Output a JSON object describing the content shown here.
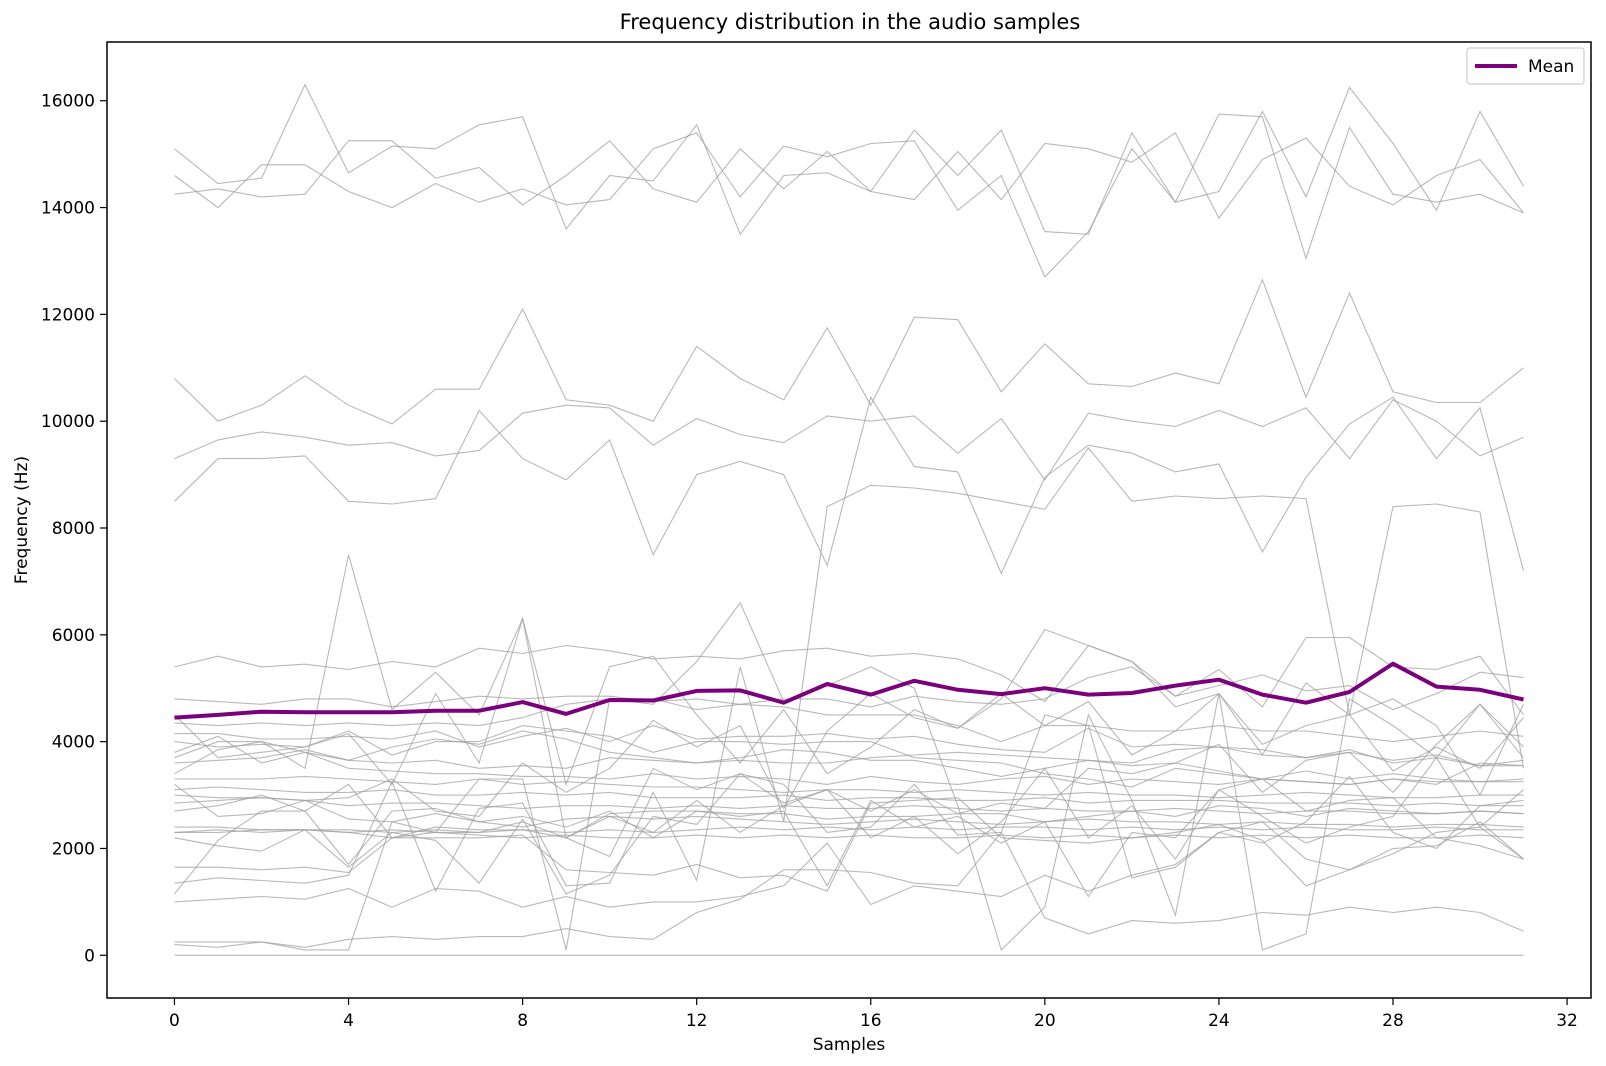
{
  "chart_data": {
    "type": "line",
    "title": "Frequency distribution in the audio samples",
    "xlabel": "Samples",
    "ylabel": "Frequency (Hz)",
    "xlim": [
      -1.55,
      32.55
    ],
    "ylim": [
      -800,
      17100
    ],
    "xticks": [
      0,
      4,
      8,
      12,
      16,
      20,
      24,
      28,
      32
    ],
    "yticks": [
      0,
      2000,
      4000,
      6000,
      8000,
      10000,
      12000,
      14000,
      16000
    ],
    "grid": false,
    "legend": {
      "position": "top-right",
      "entries": [
        "Mean"
      ]
    },
    "colors": {
      "mean": "#7b007b",
      "samples": "#a0a0a0"
    },
    "x": [
      0,
      1,
      2,
      3,
      4,
      5,
      6,
      7,
      8,
      9,
      10,
      11,
      12,
      13,
      14,
      15,
      16,
      17,
      18,
      19,
      20,
      21,
      22,
      23,
      24,
      25,
      26,
      27,
      28,
      29,
      30,
      31
    ],
    "series": [
      {
        "values": [
          15100,
          14450,
          14550,
          16300,
          14650,
          15150,
          15100,
          15550,
          15700,
          13600,
          14600,
          14500,
          15550,
          13500,
          14600,
          14650,
          14300,
          15450,
          14600,
          15450,
          13550,
          13500,
          15400,
          14100,
          14300,
          15800,
          14200,
          16250,
          15200,
          13950,
          15800,
          14400
        ]
      },
      {
        "values": [
          14250,
          14350,
          14200,
          14250,
          15250,
          15250,
          14550,
          14750,
          14050,
          14600,
          15250,
          14350,
          14100,
          15100,
          14350,
          15050,
          14300,
          14150,
          15050,
          14150,
          15200,
          15100,
          14850,
          15400,
          13800,
          14900,
          15300,
          14400,
          14050,
          14600,
          14900,
          13900
        ]
      },
      {
        "values": [
          14600,
          14000,
          14800,
          14800,
          14300,
          14000,
          14450,
          14100,
          14350,
          14050,
          14150,
          15100,
          15400,
          14200,
          15150,
          14950,
          15200,
          15250,
          13950,
          14600,
          12700,
          13550,
          15100,
          14100,
          15750,
          15700,
          13050,
          15500,
          14250,
          14100,
          14250,
          13900
        ]
      },
      {
        "values": [
          10800,
          10000,
          10300,
          10850,
          10300,
          9950,
          10600,
          10600,
          12100,
          10400,
          10300,
          10000,
          11400,
          10800,
          10400,
          11750,
          10300,
          11950,
          11900,
          10550,
          11450,
          10700,
          10650,
          10900,
          10700,
          12650,
          10450,
          12400,
          10550,
          10350,
          10350,
          11000
        ]
      },
      {
        "values": [
          9300,
          9650,
          9800,
          9700,
          9550,
          9600,
          9350,
          9450,
          10150,
          10300,
          10250,
          9550,
          10050,
          9750,
          9600,
          10100,
          10000,
          10100,
          9400,
          10050,
          8900,
          10150,
          10000,
          9900,
          10200,
          9900,
          10250,
          9300,
          10400,
          10000,
          9350,
          9700
        ]
      },
      {
        "values": [
          8500,
          9300,
          9300,
          9350,
          8500,
          8450,
          8550,
          10200,
          9300,
          8900,
          9650,
          7500,
          9000,
          9250,
          9000,
          7300,
          10450,
          9150,
          9050,
          7150,
          8950,
          9550,
          9400,
          9050,
          9200,
          7550,
          8950,
          9950,
          10450,
          9300,
          10250,
          7200
        ]
      },
      {
        "values": [
          5400,
          5600,
          5400,
          5450,
          5350,
          5500,
          5400,
          5750,
          5650,
          5800,
          5700,
          5550,
          5600,
          5550,
          5700,
          5750,
          5600,
          5650,
          5550,
          5250,
          4750,
          5800,
          5500,
          4850,
          5350,
          4650,
          5950,
          5950,
          5400,
          5350,
          5600,
          4500
        ]
      },
      {
        "values": [
          4800,
          4750,
          4700,
          4800,
          4800,
          4650,
          4750,
          4850,
          4800,
          4850,
          4850,
          4750,
          4800,
          4700,
          4800,
          4800,
          4650,
          4850,
          4750,
          4700,
          4800,
          5200,
          5400,
          4850,
          5050,
          5250,
          4950,
          5050,
          4600,
          4900,
          5300,
          5200
        ]
      },
      {
        "values": [
          4350,
          4300,
          4350,
          4300,
          4350,
          4300,
          4350,
          4300,
          4450,
          4700,
          4800,
          4800,
          4600,
          4700,
          4650,
          4500,
          4500,
          4500,
          4300,
          4000,
          4300,
          4300,
          4200,
          4200,
          4300,
          4200,
          4200,
          4100,
          4000,
          4100,
          4200,
          4100
        ]
      },
      {
        "values": [
          4150,
          4150,
          4050,
          4050,
          4100,
          4050,
          4200,
          3900,
          4100,
          4250,
          4000,
          4300,
          4050,
          4100,
          4100,
          4150,
          4050,
          4100,
          3950,
          3850,
          3800,
          4250,
          3900,
          3950,
          3900,
          3850,
          3700,
          3800,
          3650,
          3750,
          3550,
          3550
        ]
      },
      {
        "values": [
          4000,
          3900,
          3950,
          3900,
          4200,
          3750,
          4000,
          4000,
          4300,
          4200,
          4100,
          3800,
          4000,
          4000,
          3950,
          4000,
          4000,
          3700,
          3650,
          3600,
          3400,
          3300,
          3150,
          3500,
          3400,
          3300,
          3250,
          3200,
          3300,
          3200,
          3600,
          3550
        ]
      },
      {
        "values": [
          3800,
          4100,
          3600,
          3800,
          3650,
          3900,
          4050,
          3950,
          4200,
          4050,
          3800,
          3700,
          3600,
          3700,
          3850,
          3800,
          3650,
          3650,
          3500,
          3350,
          3500,
          3650,
          3550,
          3600,
          3450,
          3300,
          3450,
          3300,
          3400,
          3300,
          3250,
          3250
        ]
      },
      {
        "values": [
          3600,
          3650,
          3700,
          3850,
          3650,
          3600,
          3650,
          3500,
          3550,
          3500,
          3700,
          3650,
          3600,
          3650,
          3600,
          3600,
          3700,
          3750,
          3800,
          3750,
          3700,
          3650,
          3600,
          3850,
          3900,
          3750,
          3700,
          3850,
          3600,
          3700,
          3550,
          3650
        ]
      },
      {
        "values": [
          3400,
          3850,
          4000,
          3800,
          3500,
          3450,
          3400,
          3400,
          3350,
          3350,
          3300,
          3400,
          3300,
          3350,
          3300,
          3200,
          3350,
          3250,
          3200,
          3300,
          3350,
          3200,
          3300,
          3250,
          3200,
          3300,
          3250,
          3200,
          3300,
          3250,
          3250,
          3300
        ]
      },
      {
        "values": [
          3300,
          3300,
          3300,
          3350,
          3300,
          3250,
          3200,
          3300,
          3200,
          3250,
          3200,
          3150,
          3150,
          3100,
          3050,
          3100,
          3100,
          3050,
          3100,
          3050,
          3000,
          3050,
          3000,
          3000,
          2950,
          3000,
          3050,
          3000,
          2950,
          2950,
          3000,
          3000
        ]
      },
      {
        "values": [
          3100,
          3150,
          3100,
          3050,
          3050,
          3100,
          3000,
          3000,
          3050,
          3000,
          3050,
          2950,
          2950,
          2950,
          3000,
          2900,
          2950,
          2950,
          2900,
          2900,
          2950,
          2850,
          2900,
          2900,
          2900,
          2850,
          2850,
          2850,
          2800,
          2850,
          2800,
          2800
        ]
      },
      {
        "values": [
          3200,
          2600,
          2650,
          2900,
          2550,
          2500,
          2650,
          2500,
          2400,
          2550,
          2600,
          2550,
          2600,
          2550,
          2500,
          2450,
          2500,
          2550,
          2500,
          2450,
          2500,
          2550,
          2500,
          2500,
          2450,
          2500,
          2450,
          2450,
          2400,
          2450,
          2450,
          2400
        ]
      },
      {
        "values": [
          2850,
          2900,
          2950,
          2900,
          2800,
          2850,
          2850,
          2800,
          2750,
          2800,
          2800,
          2750,
          2800,
          2750,
          2800,
          2750,
          2750,
          2800,
          2750,
          2700,
          2750,
          2700,
          2700,
          2750,
          2700,
          2650,
          2700,
          2700,
          2650,
          2650,
          2700,
          2650
        ]
      },
      {
        "values": [
          2400,
          2400,
          2350,
          2350,
          2300,
          2350,
          2300,
          2250,
          2200,
          2250,
          2200,
          2200,
          2250,
          2200,
          2250,
          2200,
          2250,
          2200,
          2200,
          2250,
          2200,
          2250,
          2200,
          2250,
          2200,
          2250,
          2200,
          2250,
          2200,
          2200,
          2250,
          2200
        ]
      },
      {
        "values": [
          2300,
          2350,
          2300,
          2350,
          2350,
          2300,
          2350,
          2300,
          2350,
          2300,
          2350,
          2300,
          2350,
          2400,
          2350,
          2400,
          2350,
          2400,
          2350,
          2400,
          2400,
          2350,
          2400,
          2350,
          2400,
          2350,
          2400,
          2350,
          2350,
          2400,
          2350,
          2350
        ]
      },
      {
        "values": [
          1650,
          1650,
          1600,
          1650,
          1550,
          2200,
          2200,
          2200,
          2250,
          1600,
          1550,
          1500,
          1700,
          1450,
          1500,
          1200,
          2850,
          2900,
          2950,
          2200,
          2150,
          2100,
          2200,
          2300,
          2450,
          2150,
          1300,
          1600,
          2000,
          2050,
          2500,
          1800
        ]
      },
      {
        "values": [
          1150,
          2150,
          2700,
          2700,
          1700,
          2700,
          2750,
          2500,
          2600,
          2400,
          2700,
          2200,
          2700,
          2600,
          2700,
          1300,
          2900,
          2400,
          2600,
          2100,
          2500,
          1100,
          2300,
          2200,
          3100,
          3300,
          2700,
          2900,
          2950,
          2200,
          2050,
          1800
        ]
      },
      {
        "values": [
          1000,
          1050,
          1100,
          1050,
          1250,
          900,
          1250,
          1200,
          900,
          1100,
          900,
          1000,
          1000,
          1100,
          1300,
          2100,
          950,
          1300,
          1200,
          1100,
          1500,
          1200,
          1500,
          1700,
          2300,
          2500,
          1800,
          1600,
          1900,
          2300,
          2400,
          1800
        ]
      },
      {
        "values": [
          250,
          250,
          250,
          150,
          300,
          350,
          300,
          350,
          350,
          500,
          350,
          300,
          800,
          1050,
          1600,
          1600,
          1550,
          1350,
          1300,
          2300,
          700,
          400,
          650,
          600,
          650,
          800,
          750,
          900,
          800,
          900,
          800,
          450
        ]
      },
      {
        "values": [
          200,
          150,
          250,
          100,
          100,
          2500,
          2300,
          3300,
          3300,
          100,
          4800,
          4700,
          5500,
          6600,
          4750,
          5050,
          5400,
          5000,
          2800,
          100,
          900,
          4500,
          2900,
          750,
          4900,
          100,
          400,
          4800,
          4300,
          3700,
          4700,
          3900
        ]
      },
      {
        "values": [
          3000,
          2950,
          2950,
          2900,
          2950,
          3300,
          2700,
          2600,
          3600,
          3050,
          3500,
          4400,
          3900,
          4300,
          2750,
          4200,
          4900,
          4450,
          4250,
          4800,
          6100,
          5800,
          5500,
          4650,
          4900,
          3750,
          5100,
          4500,
          4800,
          4300,
          3000,
          4700
        ]
      },
      {
        "values": [
          4500,
          3700,
          3800,
          3900,
          4150,
          3200,
          4900,
          3600,
          6300,
          3200,
          5400,
          5600,
          4500,
          3600,
          4600,
          3400,
          3900,
          4600,
          4250,
          4900,
          4300,
          4750,
          3750,
          4200,
          4900,
          3950,
          4300,
          4500,
          3450,
          3900,
          3500,
          4450
        ]
      },
      {
        "values": [
          3700,
          4000,
          4000,
          3500,
          7500,
          4600,
          5300,
          4500,
          6300,
          2200,
          1850,
          3500,
          3100,
          3400,
          3200,
          2300,
          2400,
          3200,
          2250,
          2300,
          4500,
          4300,
          1450,
          1650,
          2300,
          2100,
          2500,
          3350,
          2300,
          2000,
          2800,
          2900
        ]
      },
      {
        "values": [
          2700,
          2800,
          3000,
          2700,
          3200,
          2200,
          2300,
          2300,
          2500,
          2200,
          2600,
          2300,
          2900,
          2300,
          2800,
          3100,
          2200,
          2600,
          1900,
          2500,
          3500,
          2200,
          2800,
          1800,
          3100,
          2600,
          2100,
          2400,
          2600,
          3700,
          2400,
          3100
        ]
      },
      {
        "values": [
          0,
          0,
          0,
          0,
          0,
          0,
          0,
          0,
          0,
          0,
          0,
          0,
          0,
          0,
          0,
          0,
          0,
          0,
          0,
          0,
          0,
          0,
          0,
          0,
          0,
          0,
          0,
          0,
          0,
          0,
          0,
          0
        ]
      },
      {
        "values": [
          2300,
          2300,
          2350,
          2350,
          2300,
          2200,
          2400,
          2350,
          2350,
          2200,
          2650,
          2700,
          2700,
          2650,
          2650,
          2550,
          2600,
          2600,
          2650,
          2650,
          2500,
          2600,
          2700,
          2600,
          2800,
          2750,
          2600,
          2750,
          2700,
          2650,
          2700,
          2650
        ]
      },
      {
        "values": [
          2200,
          2050,
          1950,
          2350,
          1650,
          2300,
          2150,
          1350,
          2550,
          1150,
          1500,
          2600,
          2450,
          3400,
          2850,
          3100,
          2700,
          3100,
          2650,
          2850,
          2750,
          3500,
          3400,
          3600,
          3950,
          3050,
          3650,
          3800,
          3050,
          3950,
          4700,
          3700
        ]
      },
      {
        "values": [
          1350,
          1450,
          1400,
          1350,
          1500,
          3250,
          1200,
          2750,
          2850,
          1300,
          1350,
          3050,
          1400,
          5400,
          2500,
          8400,
          8800,
          8750,
          8650,
          8500,
          8350,
          9500,
          8500,
          8600,
          8550,
          8600,
          8550,
          4500,
          8400,
          8450,
          8300,
          3500
        ]
      }
    ],
    "mean": {
      "name": "Mean",
      "values": [
        4450,
        4500,
        4560,
        4550,
        4550,
        4550,
        4580,
        4580,
        4740,
        4520,
        4780,
        4770,
        4950,
        4960,
        4730,
        5080,
        4880,
        5140,
        4970,
        4890,
        5000,
        4880,
        4910,
        5050,
        5160,
        4880,
        4730,
        4930,
        5460,
        5030,
        4970,
        4790
      ]
    }
  }
}
